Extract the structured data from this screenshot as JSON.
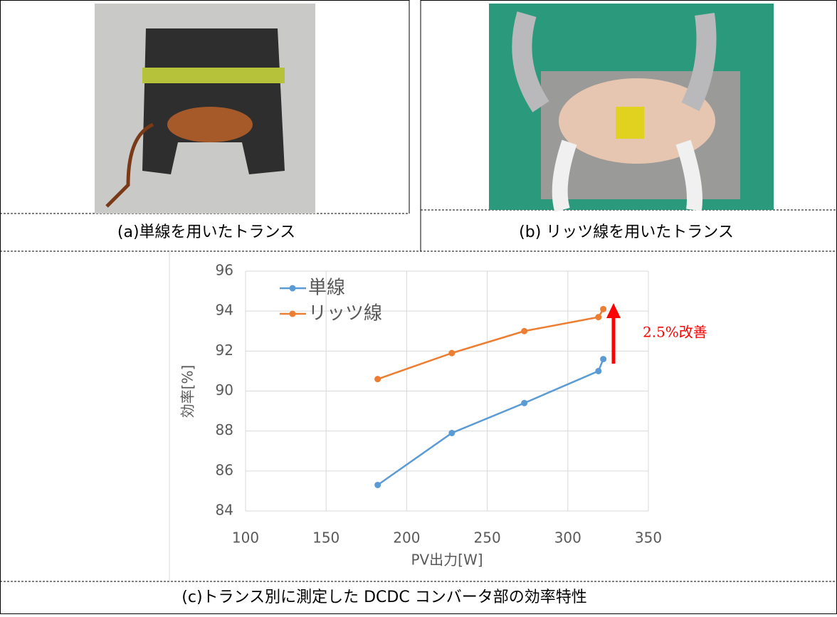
{
  "captions": [
    "(a)単線を用いたトランス",
    "(b) リッツ線を用いたトランス",
    "(c)トランス別に測定した DCDC コンバータ部の効率特性"
  ],
  "chart_data": {
    "type": "line",
    "xlabel": "PV出力[W]",
    "ylabel": "効率[%]",
    "x": [
      182,
      228,
      273,
      319,
      322
    ],
    "series": [
      {
        "name": "単線",
        "color": "#5b9bd5",
        "values": [
          85.3,
          87.9,
          89.4,
          91.0,
          91.6
        ]
      },
      {
        "name": "リッツ線",
        "color": "#ed7d31",
        "values": [
          90.6,
          91.9,
          93.0,
          93.7,
          94.1
        ]
      }
    ],
    "xlim": [
      100,
      350
    ],
    "xticks": [
      100,
      150,
      200,
      250,
      300,
      350
    ],
    "ylim": [
      84,
      96
    ],
    "yticks": [
      84,
      86,
      88,
      90,
      92,
      94,
      96
    ],
    "grid": true,
    "legend": "upper-left",
    "annotation": "2.5%改善",
    "annotation_color": "#ff0000"
  }
}
